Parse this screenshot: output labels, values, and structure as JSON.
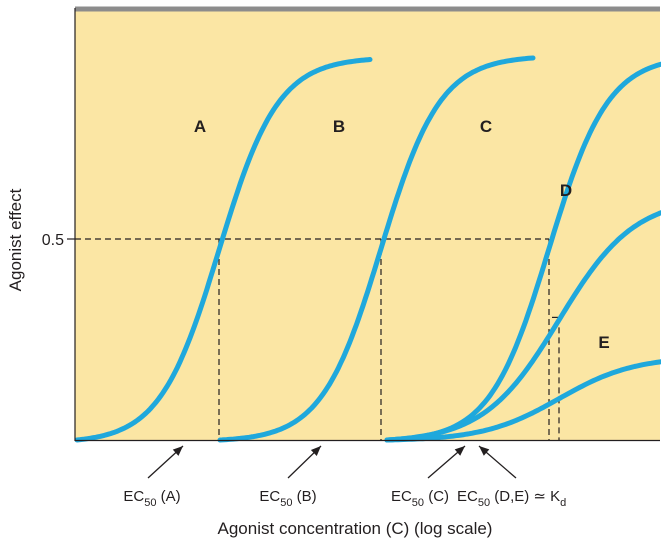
{
  "chart_data": {
    "type": "line",
    "x_scale": "log",
    "xlabel": "Agonist concentration (C) (log scale)",
    "ylabel": "Agonist effect",
    "y_ticks": [
      {
        "value": 0.5,
        "label": "0.5"
      }
    ],
    "ylim": [
      0,
      1
    ],
    "colors": {
      "plot_background": "#fbe6a4",
      "curve": "#1fa8dc",
      "top_border": "#8c8c8c",
      "axis": "#231f20"
    },
    "series": [
      {
        "name": "A",
        "emax": 0.96,
        "log_ec50": 1.42,
        "slope": 1.47,
        "x_start": 0.0,
        "x_end": 2.93
      },
      {
        "name": "B",
        "emax": 0.96,
        "log_ec50": 3.04,
        "slope": 1.47,
        "x_start": 1.43,
        "x_end": 4.56
      },
      {
        "name": "C",
        "emax": 0.96,
        "log_ec50": 4.72,
        "slope": 1.47,
        "x_start": 3.1,
        "x_end": 6.7
      },
      {
        "name": "D",
        "emax": 0.61,
        "log_ec50": 4.82,
        "slope": 1.15,
        "x_start": 3.1,
        "x_end": 6.95
      },
      {
        "name": "E",
        "emax": 0.21,
        "log_ec50": 4.82,
        "slope": 1.15,
        "x_start": 3.1,
        "x_end": 6.95
      }
    ],
    "ec50_markers": [
      {
        "id": "A",
        "log_x": 1.42,
        "y": 0.5,
        "label": "EC",
        "sub": "50",
        "tail": " (A)"
      },
      {
        "id": "B",
        "log_x": 3.04,
        "y": 0.5,
        "label": "EC",
        "sub": "50",
        "tail": " (B)"
      },
      {
        "id": "C",
        "log_x": 4.72,
        "y": 0.5,
        "label": "EC",
        "sub": "50",
        "tail": " (C)"
      },
      {
        "id": "DE",
        "log_x": 4.82,
        "y": 0.305,
        "label": "EC",
        "sub": "50",
        "tail": " (D,E) ≃ K",
        "tail_sub": "d"
      }
    ]
  }
}
